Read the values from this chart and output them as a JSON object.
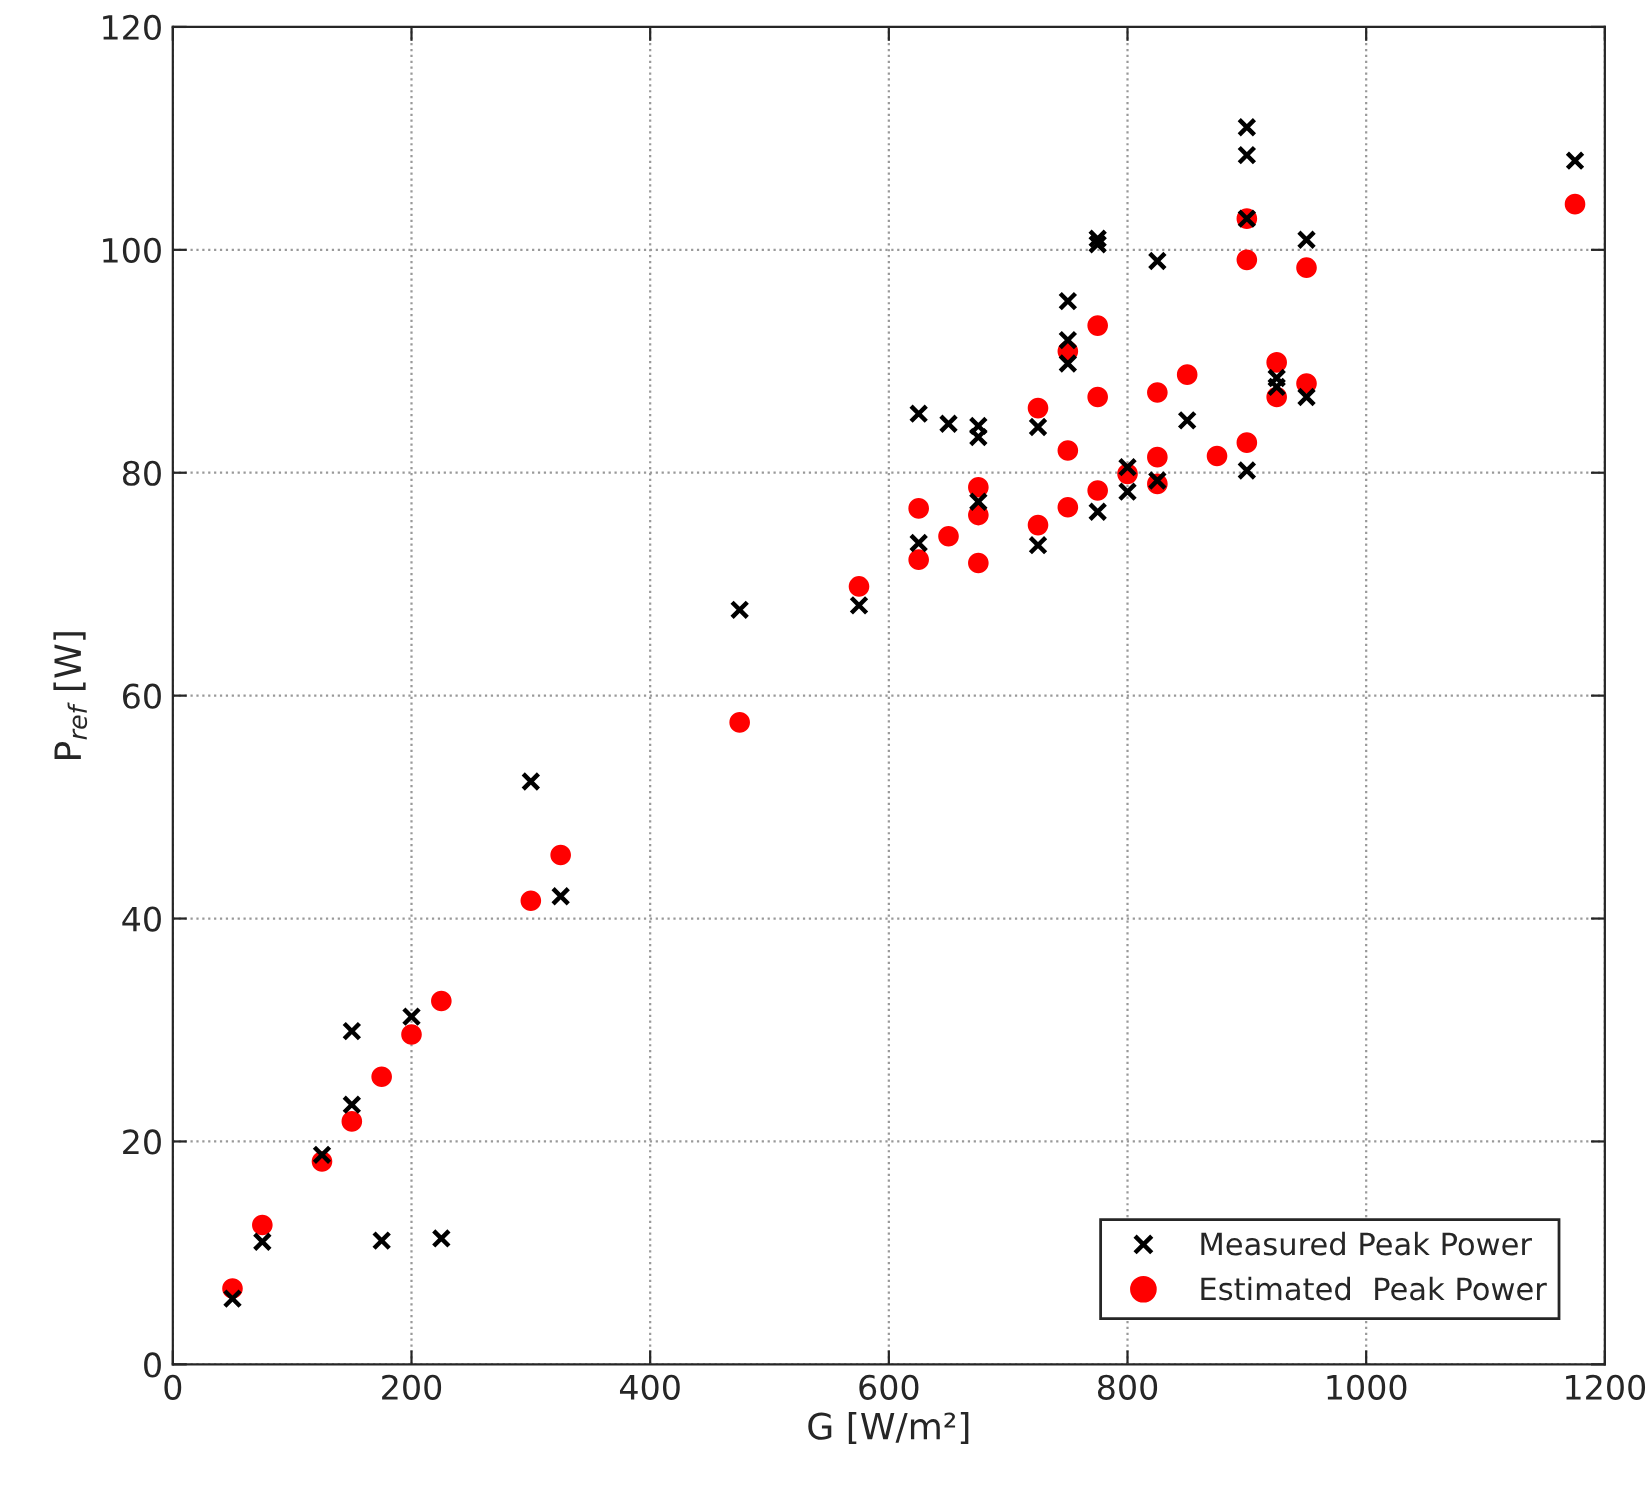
{
  "chart_data": {
    "type": "scatter",
    "xlabel": "G [W/m²]",
    "ylabel": "P$_{ref}$ [W]",
    "xlim": [
      0,
      1200
    ],
    "xticks": [
      0,
      200,
      400,
      600,
      800,
      1000,
      1200
    ],
    "ylim": [
      0,
      120
    ],
    "yticks": [
      0,
      20,
      40,
      60,
      80,
      100,
      120
    ],
    "grid": true,
    "legend": "bottom right",
    "series": [
      {
        "name": "Measured Peak Power",
        "color": "#000000",
        "marker": "cross",
        "x": [
          50,
          75,
          125,
          150,
          150,
          175,
          200,
          225,
          300,
          325,
          475,
          575,
          625,
          625,
          650,
          675,
          675,
          675,
          725,
          725,
          750,
          750,
          750,
          775,
          775,
          775,
          800,
          800,
          825,
          825,
          850,
          900,
          900,
          900,
          900,
          925,
          925,
          950,
          950,
          1175
        ],
        "values": [
          5.9,
          11.0,
          18.8,
          29.9,
          23.3,
          11.1,
          31.2,
          11.3,
          52.3,
          42.0,
          67.7,
          68.1,
          85.3,
          73.7,
          84.4,
          84.2,
          83.2,
          77.4,
          84.1,
          73.5,
          95.4,
          91.9,
          89.8,
          101.0,
          100.5,
          76.5,
          80.5,
          78.3,
          99.0,
          79.3,
          84.7,
          111.0,
          108.5,
          102.8,
          80.2,
          88.5,
          87.7,
          100.9,
          86.8,
          108.0
        ]
      },
      {
        "name": "Estimated  Peak Power",
        "color": "#ff0000",
        "marker": "circle",
        "x": [
          50,
          75,
          125,
          150,
          175,
          200,
          225,
          300,
          325,
          475,
          575,
          625,
          625,
          650,
          675,
          675,
          675,
          725,
          725,
          750,
          750,
          750,
          775,
          775,
          775,
          800,
          825,
          825,
          825,
          850,
          875,
          900,
          900,
          900,
          925,
          925,
          950,
          950,
          1175
        ],
        "values": [
          6.8,
          12.5,
          18.2,
          21.8,
          25.8,
          29.6,
          32.6,
          41.6,
          45.7,
          57.6,
          69.8,
          76.8,
          72.2,
          74.3,
          78.7,
          76.2,
          71.9,
          85.8,
          75.3,
          90.9,
          82.0,
          76.9,
          93.2,
          86.8,
          78.4,
          79.9,
          87.2,
          81.4,
          79.0,
          88.8,
          81.5,
          102.8,
          99.1,
          82.7,
          89.9,
          86.8,
          98.4,
          88.0,
          104.1
        ]
      }
    ]
  }
}
